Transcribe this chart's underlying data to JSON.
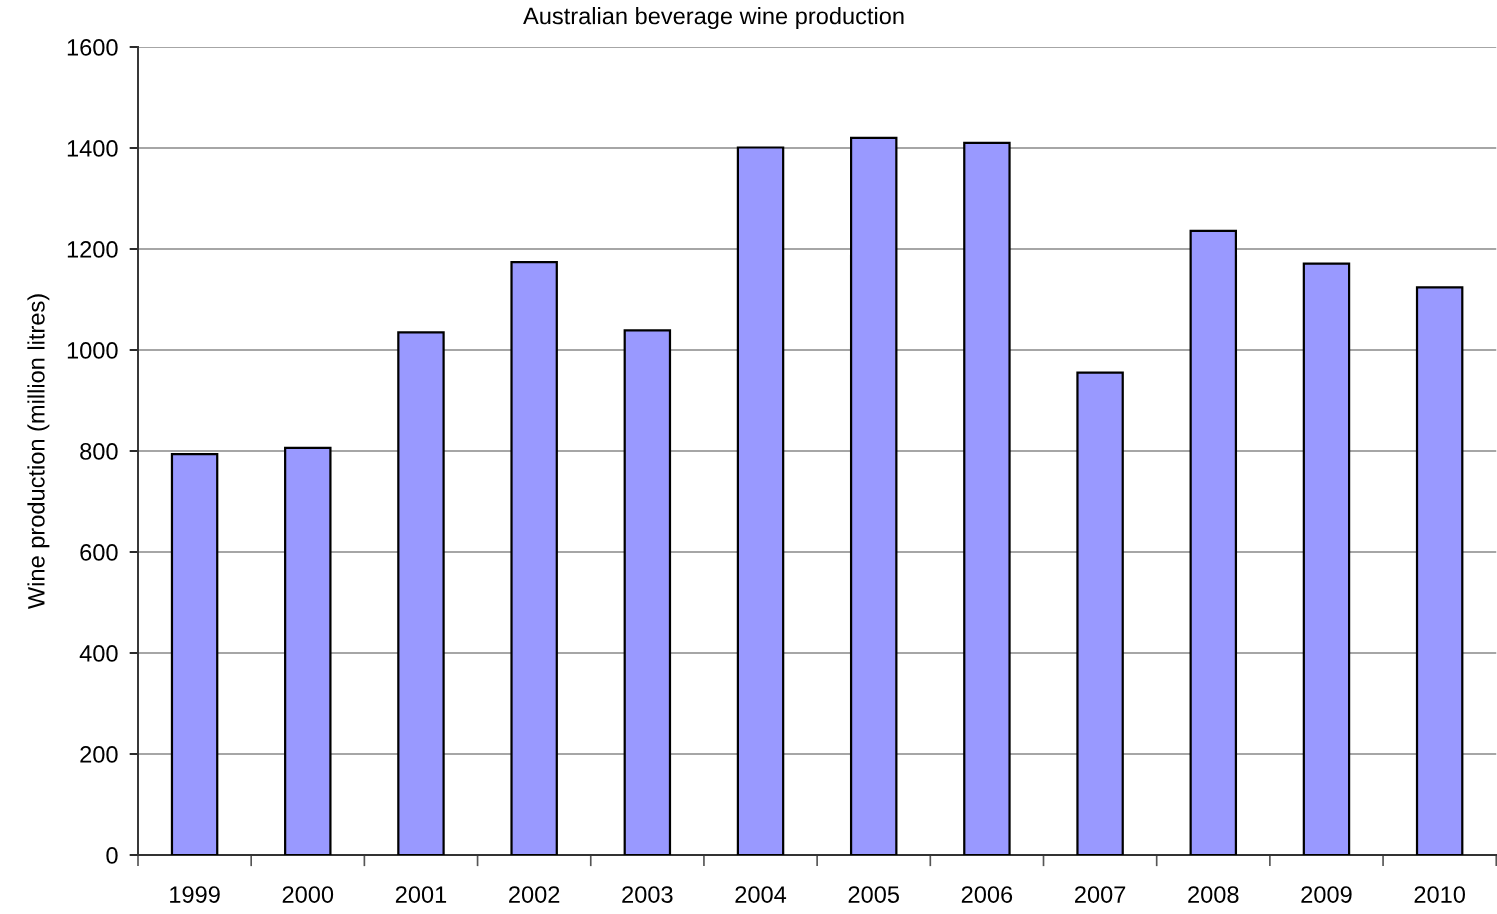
{
  "chart_data": {
    "type": "bar",
    "title": "Australian beverage wine production",
    "ylabel": "Wine production (million litres)",
    "categories": [
      "1999",
      "2000",
      "2001",
      "2002",
      "2003",
      "2004",
      "2005",
      "2006",
      "2007",
      "2008",
      "2009",
      "2010"
    ],
    "series": [
      {
        "color": "#9999ff",
        "values": [
          794,
          806,
          1035,
          1174,
          1039,
          1401,
          1420,
          1410,
          955,
          1236,
          1171,
          1124
        ]
      }
    ],
    "ylim": [
      0,
      1600
    ],
    "yticks": [
      0,
      200,
      400,
      600,
      800,
      1000,
      1200,
      1400,
      1600
    ],
    "grid": "y"
  }
}
